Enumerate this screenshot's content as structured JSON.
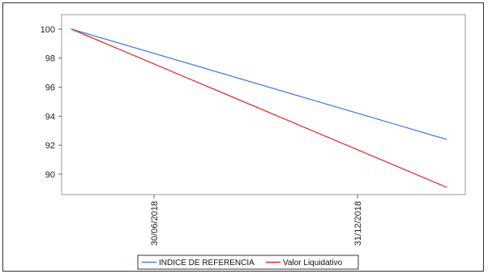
{
  "chart_data": {
    "type": "line",
    "x": [
      "start",
      "30/06/2018",
      "31/12/2018",
      "end"
    ],
    "x_tick_labels": [
      "30/06/2018",
      "31/12/2018"
    ],
    "ylim": [
      88.6,
      101
    ],
    "y_ticks": [
      90,
      92,
      94,
      96,
      98,
      100
    ],
    "grid": false,
    "legend_position": "bottom-center",
    "series": [
      {
        "name": "INDICE DE REFERENCIA",
        "color": "#4a7fe0",
        "points": [
          {
            "x": "start",
            "y": 100
          },
          {
            "x": "end",
            "y": 92.4
          }
        ]
      },
      {
        "name": "Valor Liquidativo",
        "color": "#e03030",
        "points": [
          {
            "x": "start",
            "y": 100
          },
          {
            "x": "end",
            "y": 89.1
          }
        ]
      }
    ]
  }
}
